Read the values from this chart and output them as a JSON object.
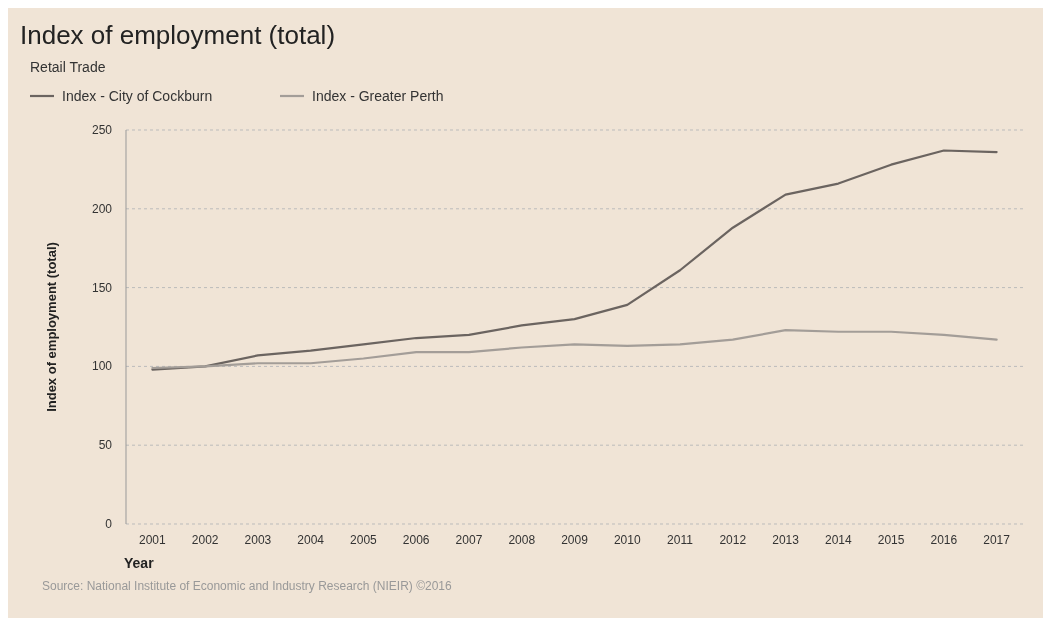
{
  "chart_data": {
    "type": "line",
    "title": "Index of employment (total)",
    "subtitle": "Retail Trade",
    "xlabel": "Year",
    "ylabel": "Index of employment (total)",
    "categories": [
      "2001",
      "2002",
      "2003",
      "2004",
      "2005",
      "2006",
      "2007",
      "2008",
      "2009",
      "2010",
      "2011",
      "2012",
      "2013",
      "2014",
      "2015",
      "2016",
      "2017"
    ],
    "series": [
      {
        "name": "Index - City of Cockburn",
        "color": "#6b6460",
        "values": [
          98,
          100,
          107,
          110,
          114,
          118,
          120,
          126,
          130,
          139,
          161,
          188,
          209,
          216,
          228,
          237,
          236
        ]
      },
      {
        "name": "Index - Greater Perth",
        "color": "#a39d98",
        "values": [
          99,
          100,
          102,
          102,
          105,
          109,
          109,
          112,
          114,
          113,
          114,
          117,
          123,
          122,
          122,
          120,
          117
        ]
      }
    ],
    "ylim": [
      0,
      250
    ],
    "yticks": [
      0,
      50,
      100,
      150,
      200,
      250
    ],
    "grid": "y",
    "legend": "top left",
    "marker": "none",
    "line_style": "solid",
    "annotations": [
      "Source: National Institute of Economic and Industry Research (NIEIR) ©2016"
    ]
  }
}
